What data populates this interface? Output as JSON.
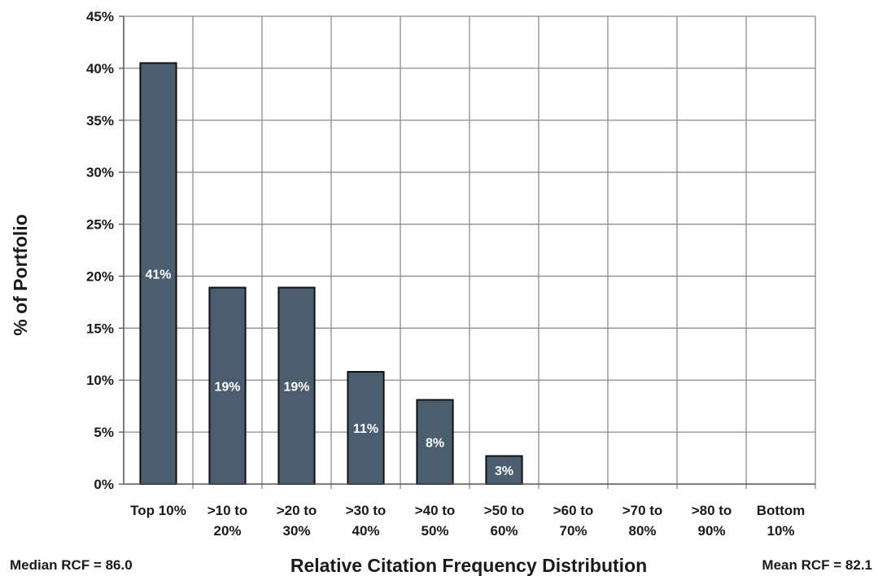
{
  "chart_data": {
    "type": "bar",
    "categories": [
      [
        "Top 10%"
      ],
      [
        ">10 to",
        "20%"
      ],
      [
        ">20 to",
        "30%"
      ],
      [
        ">30 to",
        "40%"
      ],
      [
        ">40 to",
        "50%"
      ],
      [
        ">50 to",
        "60%"
      ],
      [
        ">60 to",
        "70%"
      ],
      [
        ">70 to",
        "80%"
      ],
      [
        ">80 to",
        "90%"
      ],
      [
        "Bottom",
        "10%"
      ]
    ],
    "values": [
      40.5,
      18.9,
      18.9,
      10.8,
      8.1,
      2.7,
      0,
      0,
      0,
      0
    ],
    "data_labels": [
      "41%",
      "19%",
      "19%",
      "11%",
      "8%",
      "3%",
      "",
      "",
      "",
      ""
    ],
    "ylabel": "% of Portfolio",
    "xlabel": "Relative Citation Frequency Distribution",
    "ylim": [
      0,
      45
    ],
    "yticks": [
      "0%",
      "5%",
      "10%",
      "15%",
      "20%",
      "25%",
      "30%",
      "35%",
      "40%",
      "45%"
    ],
    "grid": true,
    "bar_color": "#4a5e70",
    "legend": "none"
  },
  "footer": {
    "median": "Median  RCF = 86.0",
    "mean": "Mean RCF = 82.1"
  }
}
